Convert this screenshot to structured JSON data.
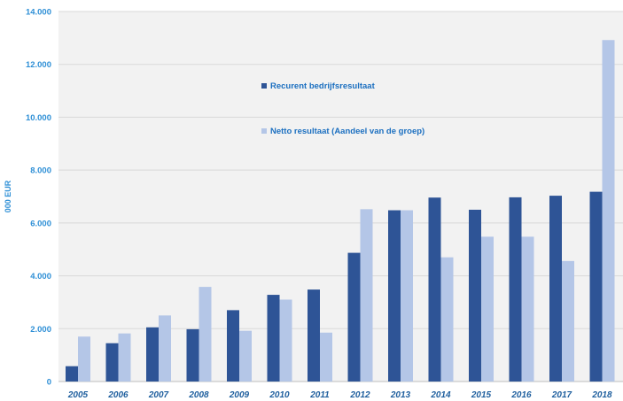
{
  "chart_data": {
    "type": "bar",
    "title": "",
    "xlabel": "",
    "ylabel": "000 EUR",
    "ylim": [
      0,
      14000
    ],
    "yticks": [
      0,
      2000,
      4000,
      6000,
      8000,
      10000,
      12000,
      14000
    ],
    "ytick_labels": [
      "0",
      "2.000",
      "4.000",
      "6.000",
      "8.000",
      "10.000",
      "12.000",
      "14.000"
    ],
    "grid": true,
    "legend_position": "center",
    "categories": [
      "2005",
      "2006",
      "2007",
      "2008",
      "2009",
      "2010",
      "2011",
      "2012",
      "2013",
      "2014",
      "2015",
      "2016",
      "2017",
      "2018"
    ],
    "series": [
      {
        "name": "Recurent bedrijfsresultaat",
        "color": "#2e5496",
        "values": [
          580,
          1450,
          2050,
          1980,
          2700,
          3280,
          3480,
          4870,
          6480,
          6960,
          6500,
          6970,
          7030,
          7180
        ]
      },
      {
        "name": "Netto resultaat (Aandeel van de groep)",
        "color": "#b4c6e7",
        "values": [
          1700,
          1820,
          2500,
          3580,
          1920,
          3100,
          1850,
          6520,
          6480,
          4700,
          5480,
          5480,
          4560,
          12920
        ]
      }
    ]
  }
}
